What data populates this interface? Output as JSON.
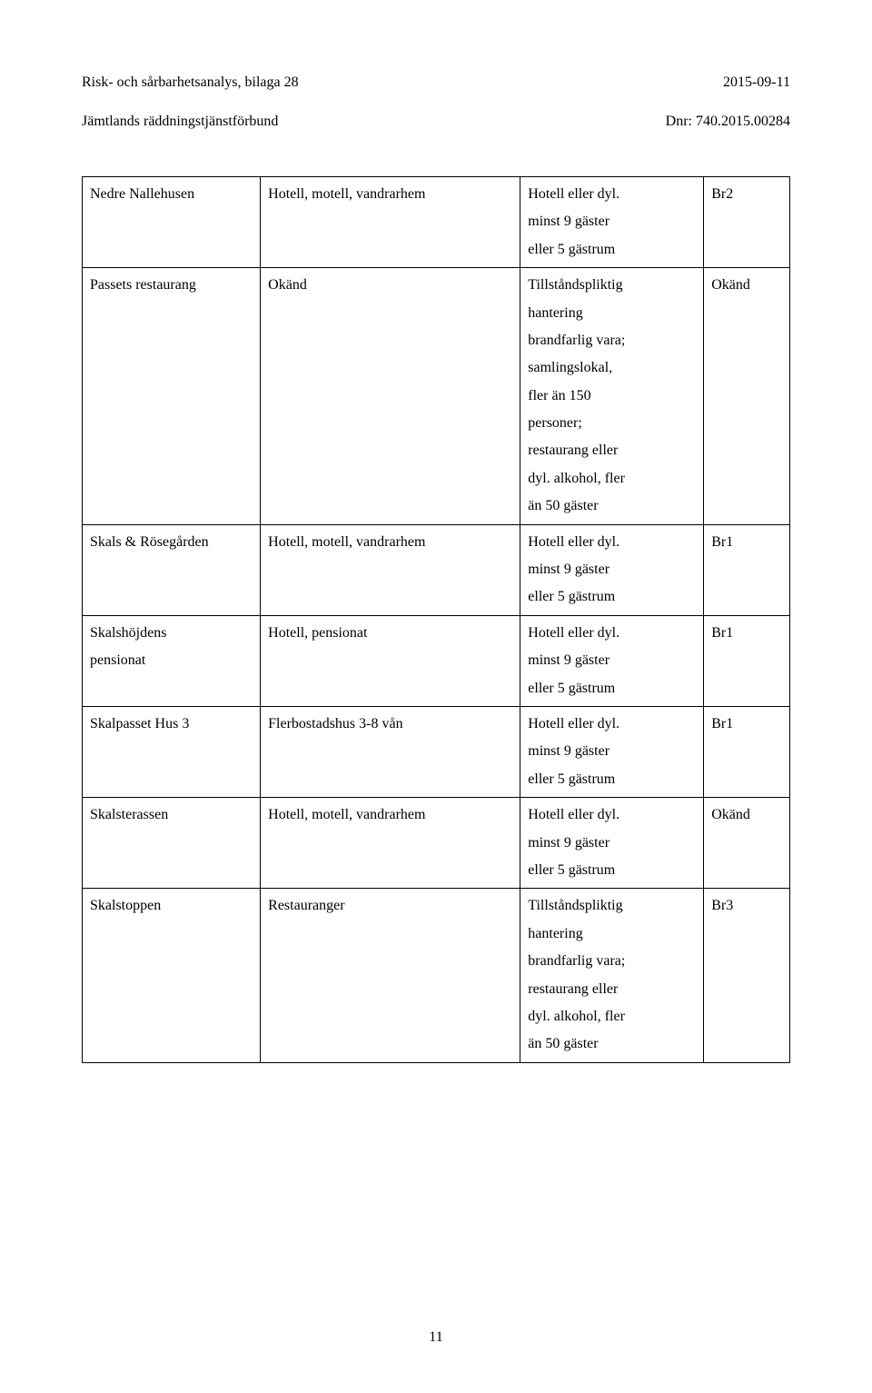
{
  "header": {
    "left_line1": "Risk- och sårbarhetsanalys, bilaga 28",
    "left_line2": "Jämtlands räddningstjänstförbund",
    "right_line1": "2015-09-11",
    "right_line2": "Dnr: 740.2015.00284"
  },
  "table": {
    "rows": [
      {
        "c1": [
          "Nedre Nallehusen"
        ],
        "c2": [
          "Hotell, motell, vandrarhem"
        ],
        "c3": [
          "Hotell eller dyl.",
          "minst 9 gäster",
          "eller 5 gästrum"
        ],
        "c4": [
          "Br2"
        ]
      },
      {
        "c1": [
          "Passets restaurang"
        ],
        "c2": [
          "Okänd"
        ],
        "c3": [
          "Tillståndspliktig",
          "hantering",
          "brandfarlig vara;",
          "samlingslokal,",
          "fler än 150",
          "personer;",
          "restaurang eller",
          "dyl. alkohol, fler",
          "än 50 gäster"
        ],
        "c4": [
          "Okänd"
        ]
      },
      {
        "c1": [
          "Skals & Rösegården"
        ],
        "c2": [
          "Hotell, motell, vandrarhem"
        ],
        "c3": [
          "Hotell eller dyl.",
          "minst 9 gäster",
          "eller 5 gästrum"
        ],
        "c4": [
          "Br1"
        ]
      },
      {
        "c1": [
          "Skalshöjdens",
          "pensionat"
        ],
        "c2": [
          "Hotell, pensionat"
        ],
        "c3": [
          "Hotell eller dyl.",
          "minst 9 gäster",
          "eller 5 gästrum"
        ],
        "c4": [
          "Br1"
        ]
      },
      {
        "c1": [
          "Skalpasset Hus 3"
        ],
        "c2": [
          "Flerbostadshus 3-8 vån"
        ],
        "c3": [
          "Hotell eller dyl.",
          "minst 9 gäster",
          "eller 5 gästrum"
        ],
        "c4": [
          "Br1"
        ]
      },
      {
        "c1": [
          "Skalsterassen"
        ],
        "c2": [
          "Hotell, motell, vandrarhem"
        ],
        "c3": [
          "Hotell eller dyl.",
          "minst 9 gäster",
          "eller 5 gästrum"
        ],
        "c4": [
          "Okänd"
        ]
      },
      {
        "c1": [
          "Skalstoppen"
        ],
        "c2": [
          "Restauranger"
        ],
        "c3": [
          "Tillståndspliktig",
          "hantering",
          "brandfarlig vara;",
          "restaurang eller",
          "dyl. alkohol, fler",
          "än 50 gäster"
        ],
        "c4": [
          "Br3"
        ]
      }
    ]
  },
  "page_number": "11",
  "colors": {
    "text": "#000000",
    "background": "#ffffff",
    "border": "#000000"
  }
}
